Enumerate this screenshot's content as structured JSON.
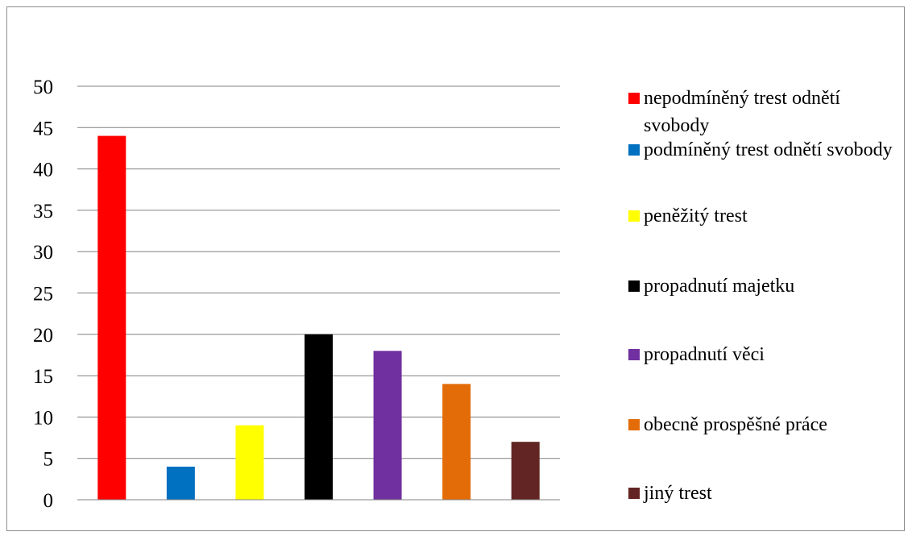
{
  "chart_data": {
    "type": "bar",
    "title": "",
    "xlabel": "",
    "ylabel": "",
    "ylim": [
      0,
      50
    ],
    "yticks": [
      0,
      5,
      10,
      15,
      20,
      25,
      30,
      35,
      40,
      45,
      50
    ],
    "grid": true,
    "legend_position": "right",
    "series": [
      {
        "name": "nepodmíněný trest odnětí svobody",
        "value": 44,
        "color": "#ff0000"
      },
      {
        "name": "podmíněný trest odnětí svobody",
        "value": 4,
        "color": "#0070c0"
      },
      {
        "name": "peněžitý trest",
        "value": 9,
        "color": "#ffff00"
      },
      {
        "name": "propadnutí majetku",
        "value": 20,
        "color": "#000000"
      },
      {
        "name": "propadnutí věci",
        "value": 18,
        "color": "#7030a0"
      },
      {
        "name": "obecně prospěšné práce",
        "value": 14,
        "color": "#e36c09"
      },
      {
        "name": "jiný trest",
        "value": 7,
        "color": "#632523"
      }
    ]
  }
}
